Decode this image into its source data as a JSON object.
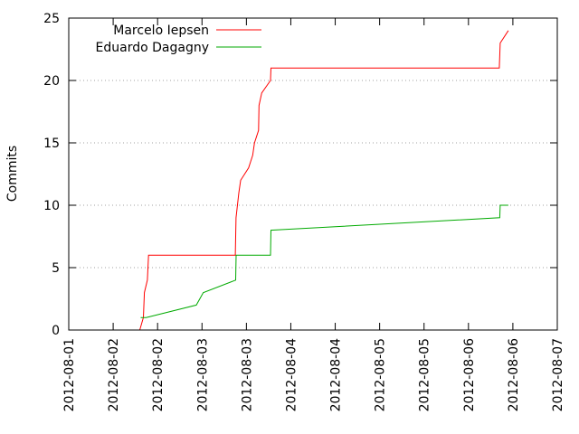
{
  "chart_data": {
    "type": "line",
    "title": "",
    "xlabel": "",
    "ylabel": "Commits",
    "ylim": [
      0,
      25
    ],
    "xlim": [
      "2012-08-01T00:00",
      "2012-08-07T00:00"
    ],
    "grid": "horizontal-dotted",
    "legend_position": "top-left",
    "y_ticks": [
      0,
      5,
      10,
      15,
      20,
      25
    ],
    "x_tick_labels": [
      "2012-08-01",
      "2012-08-02",
      "2012-08-02",
      "2012-08-03",
      "2012-08-03",
      "2012-08-04",
      "2012-08-04",
      "2012-08-05",
      "2012-08-05",
      "2012-08-06",
      "2012-08-06",
      "2012-08-07"
    ],
    "series": [
      {
        "name": "Marcelo Iepsen",
        "color": "#ff0000",
        "points": [
          {
            "x": "2012-08-01T20:56",
            "y": 0
          },
          {
            "x": "2012-08-01T22:00",
            "y": 1
          },
          {
            "x": "2012-08-01T22:17",
            "y": 3
          },
          {
            "x": "2012-08-01T23:11",
            "y": 4
          },
          {
            "x": "2012-08-01T23:31",
            "y": 6
          },
          {
            "x": "2012-08-03T01:06",
            "y": 6
          },
          {
            "x": "2012-08-03T01:18",
            "y": 9
          },
          {
            "x": "2012-08-03T02:08",
            "y": 11
          },
          {
            "x": "2012-08-03T02:40",
            "y": 12
          },
          {
            "x": "2012-08-03T05:00",
            "y": 13
          },
          {
            "x": "2012-08-03T06:12",
            "y": 14
          },
          {
            "x": "2012-08-03T06:44",
            "y": 15
          },
          {
            "x": "2012-08-03T07:57",
            "y": 16
          },
          {
            "x": "2012-08-03T08:05",
            "y": 18
          },
          {
            "x": "2012-08-03T08:52",
            "y": 19
          },
          {
            "x": "2012-08-03T11:28",
            "y": 20
          },
          {
            "x": "2012-08-03T11:36",
            "y": 21
          },
          {
            "x": "2012-08-06T06:55",
            "y": 21
          },
          {
            "x": "2012-08-06T07:11",
            "y": 23
          },
          {
            "x": "2012-08-06T09:35",
            "y": 24
          }
        ]
      },
      {
        "name": "Eduardo Dagagny",
        "color": "#00aa00",
        "points": [
          {
            "x": "2012-08-01T21:12",
            "y": 1
          },
          {
            "x": "2012-08-01T22:48",
            "y": 1
          },
          {
            "x": "2012-08-02T13:36",
            "y": 2
          },
          {
            "x": "2012-08-02T15:39",
            "y": 3
          },
          {
            "x": "2012-08-03T01:12",
            "y": 4
          },
          {
            "x": "2012-08-03T01:20",
            "y": 6
          },
          {
            "x": "2012-08-03T11:28",
            "y": 6
          },
          {
            "x": "2012-08-03T11:36",
            "y": 8
          },
          {
            "x": "2012-08-06T07:03",
            "y": 9
          },
          {
            "x": "2012-08-06T07:11",
            "y": 10
          },
          {
            "x": "2012-08-06T09:35",
            "y": 10
          }
        ]
      }
    ]
  }
}
